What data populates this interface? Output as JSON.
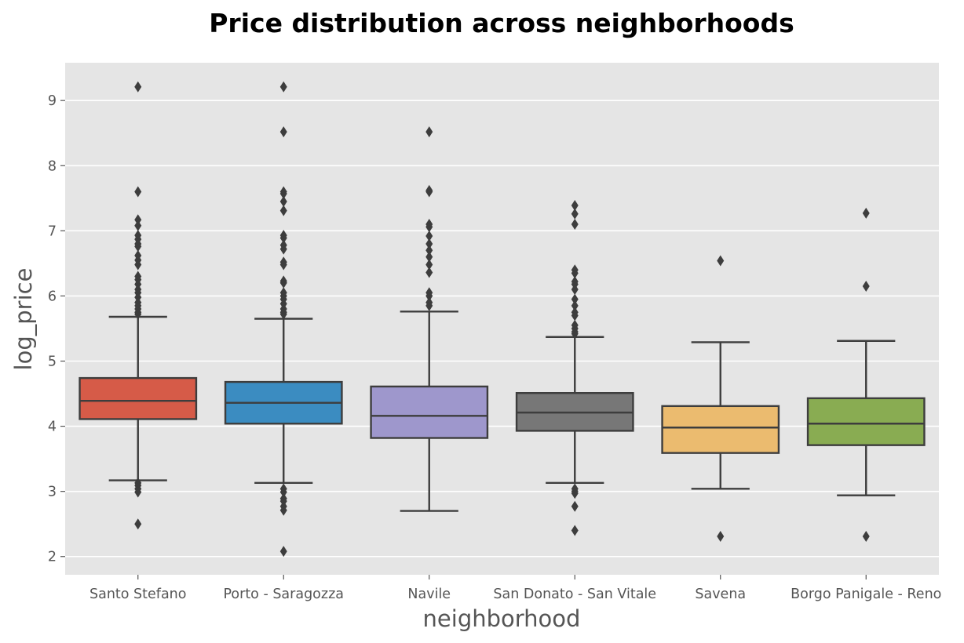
{
  "chart_data": {
    "type": "box",
    "title": "Price distribution across neighborhoods",
    "xlabel": "neighborhood",
    "ylabel": "log_price",
    "ylim": [
      1.72,
      9.58
    ],
    "yticks": [
      2,
      3,
      4,
      5,
      6,
      7,
      8,
      9
    ],
    "grid": true,
    "background": "#e5e5e5",
    "categories": [
      "Santo Stefano",
      "Porto - Saragozza",
      "Navile",
      "San Donato - San Vitale",
      "Savena",
      "Borgo Panigale - Reno"
    ],
    "series": [
      {
        "category": "Santo Stefano",
        "color": "#d65b48",
        "whisker_low": 3.17,
        "q1": 4.11,
        "median": 4.39,
        "q3": 4.74,
        "whisker_high": 5.68,
        "outliers": [
          9.21,
          7.6,
          7.17,
          7.08,
          6.93,
          6.87,
          6.8,
          6.76,
          6.62,
          6.55,
          6.48,
          6.3,
          6.25,
          6.18,
          6.1,
          6.05,
          5.98,
          5.9,
          5.85,
          5.8,
          5.75,
          5.72,
          3.13,
          3.09,
          3.04,
          2.99,
          2.5
        ]
      },
      {
        "category": "Porto - Saragozza",
        "color": "#3b8cc1",
        "whisker_low": 3.13,
        "q1": 4.04,
        "median": 4.36,
        "q3": 4.68,
        "whisker_high": 5.65,
        "outliers": [
          9.21,
          8.52,
          7.6,
          7.57,
          7.45,
          7.31,
          6.93,
          6.89,
          6.78,
          6.72,
          6.52,
          6.48,
          6.23,
          6.2,
          6.05,
          6.0,
          5.95,
          5.88,
          5.8,
          5.75,
          5.72,
          3.04,
          2.99,
          2.89,
          2.85,
          2.77,
          2.71,
          2.08
        ]
      },
      {
        "category": "Navile",
        "color": "#9e97cc",
        "whisker_low": 2.7,
        "q1": 3.82,
        "median": 4.16,
        "q3": 4.61,
        "whisker_high": 5.76,
        "outliers": [
          8.52,
          7.62,
          7.6,
          7.1,
          7.06,
          6.92,
          6.8,
          6.7,
          6.6,
          6.48,
          6.36,
          6.05,
          6.0,
          5.9,
          5.85
        ]
      },
      {
        "category": "San Donato - San Vitale",
        "color": "#777777",
        "whisker_low": 3.13,
        "q1": 3.93,
        "median": 4.21,
        "q3": 4.51,
        "whisker_high": 5.37,
        "outliers": [
          7.39,
          7.26,
          7.1,
          6.4,
          6.35,
          6.22,
          6.18,
          6.1,
          5.95,
          5.85,
          5.75,
          5.7,
          5.55,
          5.5,
          5.45,
          5.42,
          3.04,
          3.0,
          2.97,
          2.77,
          2.4
        ]
      },
      {
        "category": "Savena",
        "color": "#ebbb6f",
        "whisker_low": 3.04,
        "q1": 3.59,
        "median": 3.98,
        "q3": 4.31,
        "whisker_high": 5.29,
        "outliers": [
          6.54,
          2.31
        ]
      },
      {
        "category": "Borgo Panigale - Reno",
        "color": "#89ac52",
        "whisker_low": 2.94,
        "q1": 3.71,
        "median": 4.04,
        "q3": 4.43,
        "whisker_high": 5.31,
        "outliers": [
          7.27,
          6.15,
          2.31
        ]
      }
    ]
  }
}
